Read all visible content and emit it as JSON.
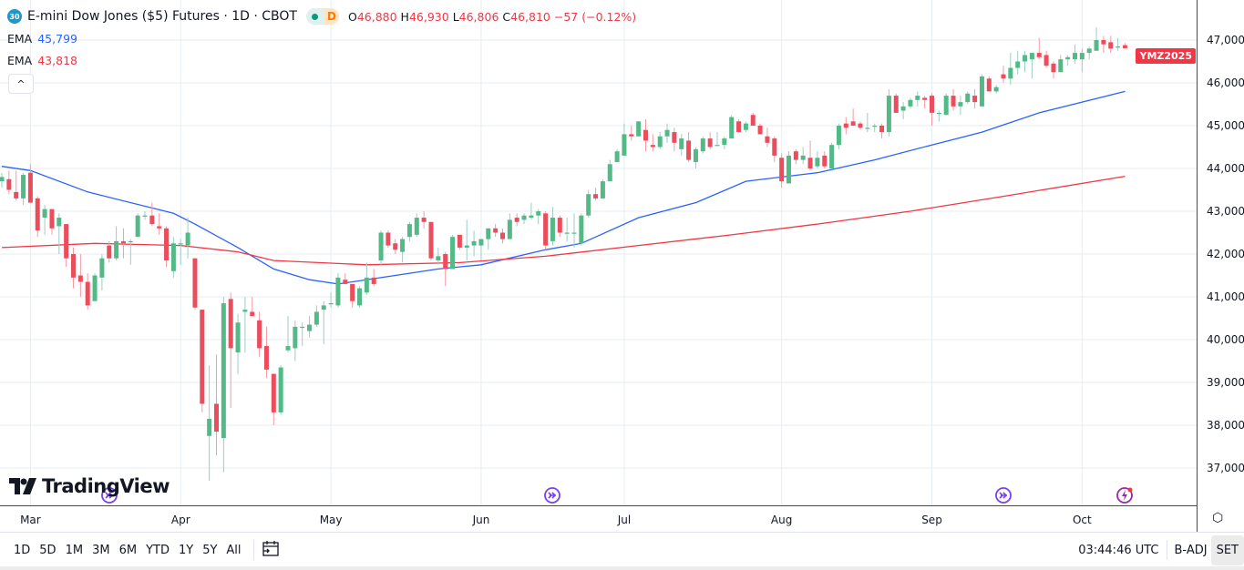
{
  "header": {
    "symbol_badge": "30",
    "title": "E-mini Dow Jones ($5) Futures · 1D · CBOT",
    "status_letter": "D",
    "ohlc": {
      "o_label": "O",
      "o": "46,880",
      "h_label": "H",
      "h": "46,930",
      "l_label": "L",
      "l": "46,806",
      "c_label": "C",
      "c": "46,810",
      "change": "−57 (−0.12%)"
    },
    "indicators": [
      {
        "label": "EMA",
        "value": "45,799",
        "color": "#2962ff"
      },
      {
        "label": "EMA",
        "value": "43,818",
        "color": "#f23645"
      }
    ],
    "collapse_icon": "^"
  },
  "logo_text": "TradingView",
  "last_price_tag": "YMZ2025",
  "colors": {
    "up": "#53b987",
    "down": "#eb4d5c",
    "up_wick": "#9ccdc4",
    "down_wick": "#f59aa4",
    "ema_fast": "#2962ff",
    "ema_slow": "#f23645",
    "grid": "#e6edf3"
  },
  "chart_data": {
    "type": "candlestick",
    "title": "E-mini Dow Jones ($5) Futures · 1D · CBOT",
    "ylim": [
      36300,
      47600
    ],
    "y_ticks": [
      37000,
      38000,
      39000,
      40000,
      41000,
      42000,
      43000,
      44000,
      45000,
      46000,
      47000
    ],
    "y_tick_labels": [
      "37,000",
      "38,000",
      "39,000",
      "40,000",
      "41,000",
      "42,000",
      "43,000",
      "44,000",
      "45,000",
      "46,000",
      "47,000"
    ],
    "month_labels": [
      {
        "label": "Mar",
        "index": 4
      },
      {
        "label": "Apr",
        "index": 25
      },
      {
        "label": "May",
        "index": 46
      },
      {
        "label": "Jun",
        "index": 67
      },
      {
        "label": "Jul",
        "index": 87
      },
      {
        "label": "Aug",
        "index": 109
      },
      {
        "label": "Sep",
        "index": 130
      },
      {
        "label": "Oct",
        "index": 151
      }
    ],
    "candles_ohlc": [
      [
        43700,
        43900,
        43550,
        43800
      ],
      [
        43750,
        43950,
        43400,
        43500
      ],
      [
        43450,
        43950,
        43250,
        43300
      ],
      [
        43300,
        43900,
        43150,
        43850
      ],
      [
        43900,
        44100,
        43200,
        43200
      ],
      [
        43300,
        43350,
        42400,
        42550
      ],
      [
        42850,
        43150,
        42450,
        43050
      ],
      [
        43050,
        43050,
        42450,
        42600
      ],
      [
        42650,
        42950,
        42000,
        42850
      ],
      [
        42700,
        42700,
        41700,
        41900
      ],
      [
        42000,
        42150,
        41200,
        41450
      ],
      [
        41500,
        42000,
        41000,
        41350
      ],
      [
        41350,
        41550,
        40700,
        40800
      ],
      [
        40900,
        41550,
        40900,
        41500
      ],
      [
        41450,
        42000,
        41150,
        41900
      ],
      [
        42200,
        42300,
        41800,
        41900
      ],
      [
        41900,
        42650,
        41850,
        42300
      ],
      [
        42300,
        42600,
        41900,
        42250
      ],
      [
        42300,
        42350,
        41750,
        42300
      ],
      [
        42400,
        42950,
        42400,
        42900
      ],
      [
        42900,
        43000,
        42800,
        42900
      ],
      [
        42900,
        43200,
        42650,
        42700
      ],
      [
        42650,
        42950,
        42450,
        42600
      ],
      [
        42600,
        42650,
        41700,
        41850
      ],
      [
        41600,
        42400,
        41450,
        42250
      ],
      [
        42250,
        42350,
        41750,
        42250
      ],
      [
        42200,
        42850,
        41900,
        42500
      ],
      [
        41900,
        41900,
        40700,
        40750
      ],
      [
        40700,
        40700,
        38300,
        38500
      ],
      [
        37750,
        39400,
        36700,
        38150
      ],
      [
        38500,
        39650,
        37300,
        37850
      ],
      [
        37700,
        41000,
        36900,
        40850
      ],
      [
        40950,
        41100,
        38400,
        39800
      ],
      [
        39700,
        40600,
        39200,
        40400
      ],
      [
        40650,
        41000,
        39700,
        40700
      ],
      [
        40650,
        41000,
        40550,
        40550
      ],
      [
        40450,
        40650,
        39600,
        39800
      ],
      [
        39850,
        40300,
        39100,
        39300
      ],
      [
        39200,
        39200,
        38000,
        38300
      ],
      [
        38300,
        39400,
        38250,
        39350
      ],
      [
        39750,
        40550,
        39700,
        39850
      ],
      [
        39800,
        40450,
        39500,
        40300
      ],
      [
        40300,
        40400,
        39850,
        40300
      ],
      [
        40200,
        40550,
        40050,
        40350
      ],
      [
        40350,
        40800,
        40300,
        40650
      ],
      [
        40700,
        40900,
        39900,
        40800
      ],
      [
        40850,
        41100,
        40750,
        40850
      ],
      [
        40800,
        41550,
        40750,
        41450
      ],
      [
        41400,
        41550,
        41300,
        41300
      ],
      [
        41300,
        41300,
        40750,
        40900
      ],
      [
        40800,
        41250,
        40750,
        41200
      ],
      [
        41100,
        41800,
        41050,
        41450
      ],
      [
        41450,
        41650,
        41250,
        41300
      ],
      [
        41850,
        42550,
        41750,
        42500
      ],
      [
        42500,
        42550,
        42150,
        42200
      ],
      [
        42250,
        42350,
        42000,
        42100
      ],
      [
        42050,
        42400,
        41800,
        42350
      ],
      [
        42400,
        42750,
        42300,
        42700
      ],
      [
        42450,
        42950,
        42400,
        42850
      ],
      [
        42850,
        43000,
        42600,
        42750
      ],
      [
        42750,
        42750,
        41850,
        41900
      ],
      [
        41850,
        42150,
        41750,
        41950
      ],
      [
        42000,
        42050,
        41250,
        41650
      ],
      [
        41650,
        42450,
        41650,
        42400
      ],
      [
        42450,
        42450,
        42100,
        42150
      ],
      [
        42150,
        42800,
        41850,
        42200
      ],
      [
        42200,
        42550,
        41950,
        42300
      ],
      [
        42200,
        42300,
        41850,
        42350
      ],
      [
        42350,
        42600,
        42100,
        42600
      ],
      [
        42600,
        42700,
        42400,
        42500
      ],
      [
        42500,
        42600,
        42250,
        42350
      ],
      [
        42350,
        42950,
        42350,
        42800
      ],
      [
        42850,
        42950,
        42650,
        42750
      ],
      [
        42800,
        42950,
        42700,
        42900
      ],
      [
        42850,
        43200,
        42800,
        42900
      ],
      [
        42900,
        43050,
        42700,
        43000
      ],
      [
        42950,
        43000,
        42100,
        42200
      ],
      [
        42300,
        43100,
        42200,
        42850
      ],
      [
        42850,
        42900,
        42400,
        42500
      ],
      [
        42500,
        42850,
        42300,
        42500
      ],
      [
        42500,
        42950,
        42150,
        42500
      ],
      [
        42250,
        42950,
        42200,
        42900
      ],
      [
        42900,
        43500,
        42850,
        43400
      ],
      [
        43400,
        43550,
        43250,
        43300
      ],
      [
        43300,
        43750,
        43300,
        43700
      ],
      [
        43700,
        44200,
        43700,
        44100
      ],
      [
        44150,
        44450,
        44150,
        44400
      ],
      [
        44300,
        45050,
        44300,
        44800
      ],
      [
        44800,
        45000,
        44650,
        44750
      ],
      [
        44750,
        45100,
        44750,
        45100
      ],
      [
        44900,
        45150,
        44400,
        44650
      ],
      [
        44550,
        44800,
        44400,
        44500
      ],
      [
        44500,
        44850,
        44450,
        44750
      ],
      [
        44750,
        45050,
        44600,
        44900
      ],
      [
        44850,
        44950,
        44400,
        44600
      ],
      [
        44450,
        44800,
        44300,
        44700
      ],
      [
        44650,
        44850,
        44150,
        44200
      ],
      [
        44150,
        44500,
        44000,
        44450
      ],
      [
        44400,
        44750,
        44350,
        44700
      ],
      [
        44700,
        44850,
        44450,
        44500
      ],
      [
        44550,
        44850,
        44550,
        44550
      ],
      [
        44550,
        44750,
        44450,
        44700
      ],
      [
        44700,
        45250,
        44700,
        45200
      ],
      [
        45100,
        45150,
        44850,
        44850
      ],
      [
        44900,
        45100,
        44850,
        45050
      ],
      [
        45250,
        45300,
        45000,
        45000
      ],
      [
        45000,
        45050,
        44800,
        44800
      ],
      [
        44750,
        44950,
        44500,
        44600
      ],
      [
        44700,
        44750,
        44150,
        44300
      ],
      [
        44250,
        44350,
        43550,
        43700
      ],
      [
        43650,
        44400,
        43650,
        44300
      ],
      [
        44400,
        44450,
        44100,
        44200
      ],
      [
        44200,
        44500,
        44100,
        44300
      ],
      [
        44250,
        44650,
        43950,
        44000
      ],
      [
        44050,
        44400,
        44000,
        44250
      ],
      [
        44300,
        44400,
        44000,
        44050
      ],
      [
        44000,
        44600,
        44000,
        44550
      ],
      [
        44550,
        45050,
        44450,
        45000
      ],
      [
        45050,
        45200,
        44800,
        44950
      ],
      [
        45100,
        45400,
        45000,
        45000
      ],
      [
        45050,
        45100,
        44900,
        44950
      ],
      [
        44950,
        45300,
        44850,
        44950
      ],
      [
        45000,
        45050,
        44850,
        45000
      ],
      [
        45000,
        45050,
        44700,
        44850
      ],
      [
        44850,
        45850,
        44750,
        45700
      ],
      [
        45700,
        45750,
        45300,
        45300
      ],
      [
        45350,
        45550,
        45150,
        45450
      ],
      [
        45450,
        45650,
        45400,
        45600
      ],
      [
        45600,
        45800,
        45450,
        45700
      ],
      [
        45650,
        45700,
        45400,
        45600
      ],
      [
        45700,
        45750,
        45000,
        45300
      ],
      [
        45300,
        45350,
        45100,
        45300
      ],
      [
        45250,
        45750,
        45250,
        45700
      ],
      [
        45700,
        45850,
        45350,
        45450
      ],
      [
        45450,
        45700,
        45250,
        45550
      ],
      [
        45550,
        45800,
        45500,
        45750
      ],
      [
        45700,
        45850,
        45400,
        45550
      ],
      [
        45450,
        46200,
        45450,
        46150
      ],
      [
        46100,
        46150,
        45800,
        45800
      ],
      [
        45800,
        45950,
        45750,
        45900
      ],
      [
        46200,
        46400,
        46000,
        46100
      ],
      [
        46100,
        46700,
        45950,
        46350
      ],
      [
        46350,
        46750,
        46200,
        46500
      ],
      [
        46500,
        46750,
        46250,
        46650
      ],
      [
        46550,
        46700,
        46100,
        46700
      ],
      [
        46700,
        47050,
        46550,
        46600
      ],
      [
        46650,
        46750,
        46350,
        46400
      ],
      [
        46450,
        46500,
        46100,
        46250
      ],
      [
        46250,
        46650,
        46250,
        46550
      ],
      [
        46550,
        46650,
        46400,
        46600
      ],
      [
        46550,
        46900,
        46450,
        46700
      ],
      [
        46550,
        46800,
        46250,
        46700
      ],
      [
        46700,
        46850,
        46550,
        46800
      ],
      [
        46750,
        47300,
        46750,
        47000
      ],
      [
        47000,
        47100,
        46700,
        46900
      ],
      [
        46950,
        47100,
        46700,
        46800
      ],
      [
        46850,
        47050,
        46750,
        46850
      ],
      [
        46880,
        46930,
        46806,
        46810
      ]
    ],
    "series": [
      {
        "name": "EMA (fast)",
        "points": [
          [
            0,
            44050
          ],
          [
            4,
            43950
          ],
          [
            12,
            43450
          ],
          [
            24,
            42950
          ],
          [
            27,
            42700
          ],
          [
            33,
            42150
          ],
          [
            38,
            41650
          ],
          [
            43,
            41400
          ],
          [
            47,
            41300
          ],
          [
            53,
            41450
          ],
          [
            61,
            41650
          ],
          [
            67,
            41750
          ],
          [
            76,
            42100
          ],
          [
            81,
            42250
          ],
          [
            89,
            42850
          ],
          [
            97,
            43200
          ],
          [
            104,
            43700
          ],
          [
            109,
            43800
          ],
          [
            114,
            43900
          ],
          [
            122,
            44200
          ],
          [
            130,
            44550
          ],
          [
            137,
            44850
          ],
          [
            145,
            45300
          ],
          [
            157,
            45799
          ]
        ]
      },
      {
        "name": "EMA (slow)",
        "points": [
          [
            0,
            42150
          ],
          [
            13,
            42250
          ],
          [
            25,
            42200
          ],
          [
            33,
            42050
          ],
          [
            38,
            41850
          ],
          [
            51,
            41750
          ],
          [
            64,
            41800
          ],
          [
            76,
            41950
          ],
          [
            89,
            42200
          ],
          [
            102,
            42450
          ],
          [
            114,
            42700
          ],
          [
            127,
            43000
          ],
          [
            140,
            43350
          ],
          [
            157,
            43818
          ]
        ]
      }
    ],
    "events": [
      {
        "icon": "dividend-arrow-icon",
        "index": 15
      },
      {
        "icon": "dividend-arrow-icon",
        "index": 77
      },
      {
        "icon": "dividend-arrow-icon",
        "index": 140
      },
      {
        "icon": "flash-event-icon",
        "index": 157
      }
    ]
  },
  "time_axis_settings_icon": "gear-hex-icon",
  "bottom_bar": {
    "ranges": [
      "1D",
      "5D",
      "1M",
      "3M",
      "6M",
      "YTD",
      "1Y",
      "5Y",
      "All"
    ],
    "goto_date_icon": "calendar-goto-icon",
    "clock": "03:44:46 UTC",
    "adj": "B-ADJ",
    "session": "SET"
  }
}
